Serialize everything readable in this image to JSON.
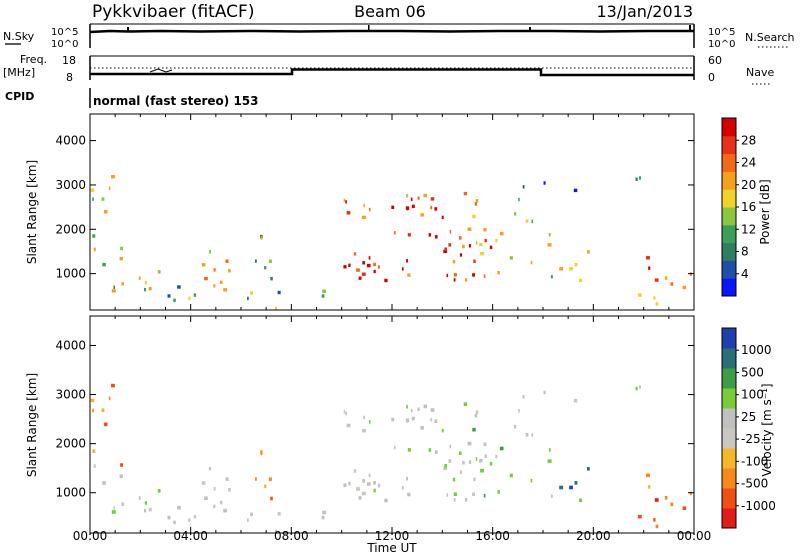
{
  "header": {
    "station": "Pykkvibaer (fitACF)",
    "beam": "Beam 06",
    "date": "13/Jan/2013"
  },
  "top_panels": {
    "nsky_label": "N.Sky",
    "nsearch_label": "N.Search",
    "freq_label_line1": "Freq.",
    "freq_label_line2": "[MHz]",
    "nave_label": "Nave",
    "cpid_label": "CPID",
    "cpid_text": "normal (fast stereo) 153",
    "nsky_ticks": [
      "10^5",
      "10^0"
    ],
    "nsearch_ticks": [
      "10^5",
      "10^0"
    ],
    "freq_ticks": [
      "18",
      "8"
    ],
    "nave_ticks": [
      "60",
      "0"
    ]
  },
  "colors": {
    "power_scale": [
      "#0a14ff",
      "#1f4fa8",
      "#2f7d62",
      "#3aa057",
      "#8cc63f",
      "#f0d22c",
      "#f4a11f",
      "#f06a17",
      "#e8311a",
      "#d40000"
    ],
    "velocity_scale": [
      "#e11a1a",
      "#f04e14",
      "#f7881c",
      "#f7b62a",
      "#c8c8c0",
      "#c0c0c0",
      "#7acb3a",
      "#3e9b46",
      "#2a6f78",
      "#1f3fb0"
    ]
  },
  "chart_data": [
    {
      "type": "heatmap",
      "title": "Power",
      "xlabel": "Time UT",
      "ylabel": "Slant Range [km]",
      "x_ticks": [
        "00:00",
        "04:00",
        "08:00",
        "12:00",
        "16:00",
        "20:00",
        "00:00"
      ],
      "y_ticks": [
        "1000",
        "2000",
        "3000",
        "4000"
      ],
      "ylim": [
        180,
        4600
      ],
      "colorbar_label": "Power [dB]",
      "colorbar_ticks": [
        "28",
        "24",
        "20",
        "16",
        "12",
        "8",
        "4"
      ],
      "colorbar_range": [
        0,
        30
      ]
    },
    {
      "type": "heatmap",
      "title": "Velocity",
      "xlabel": "Time UT",
      "ylabel": "Slant Range [km]",
      "x_ticks": [
        "00:00",
        "04:00",
        "08:00",
        "12:00",
        "16:00",
        "20:00",
        "00:00"
      ],
      "y_ticks": [
        "1000",
        "2000",
        "3000",
        "4000"
      ],
      "ylim": [
        180,
        4600
      ],
      "colorbar_label": "Velocity [m s⁻¹]",
      "colorbar_ticks": [
        "1000",
        "500",
        "100",
        "25",
        "-25",
        "-100",
        "-500",
        "-1000"
      ],
      "colorbar_range": [
        -1000,
        1000
      ]
    }
  ]
}
